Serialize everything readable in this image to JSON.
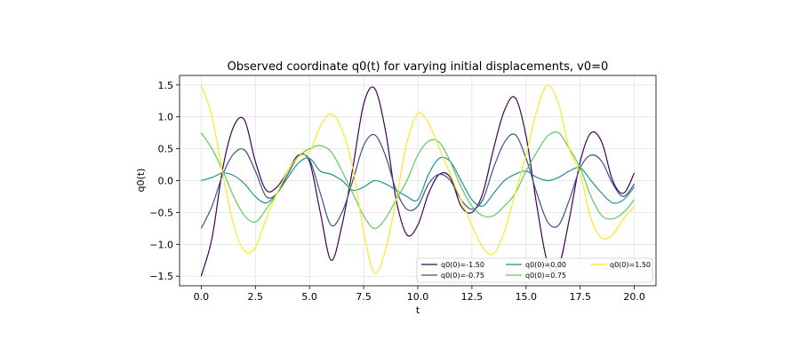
{
  "chart_data": {
    "type": "line",
    "title": "Observed coordinate q0(t) for varying initial displacements, v0=0",
    "xlabel": "t",
    "ylabel": "q0(t)",
    "xlim": [
      -1.0,
      21.0
    ],
    "ylim": [
      -1.65,
      1.65
    ],
    "x_ticks": [
      0.0,
      2.5,
      5.0,
      7.5,
      10.0,
      12.5,
      15.0,
      17.5,
      20.0
    ],
    "x_tick_labels": [
      "0.0",
      "2.5",
      "5.0",
      "7.5",
      "10.0",
      "12.5",
      "15.0",
      "17.5",
      "20.0"
    ],
    "y_ticks": [
      -1.5,
      -1.0,
      -0.5,
      0.0,
      0.5,
      1.0,
      1.5
    ],
    "y_tick_labels": [
      "−1.5",
      "−1.0",
      "−0.5",
      "0.0",
      "0.5",
      "1.0",
      "1.5"
    ],
    "grid": true,
    "legend_position": "lower-right",
    "legend_columns": 3,
    "series": [
      {
        "name": "q0(0)=-1.50",
        "color": "#440154",
        "initial": -1.5
      },
      {
        "name": "q0(0)=-0.75",
        "color": "#3b528b",
        "initial": -0.75
      },
      {
        "name": "q0(0)=0.00",
        "color": "#21918c",
        "initial": 0.0
      },
      {
        "name": "q0(0)=0.75",
        "color": "#5ec962",
        "initial": 0.75
      },
      {
        "name": "q0(0)=1.50",
        "color": "#fde725",
        "initial": 1.5
      }
    ],
    "x": [
      0,
      0.5,
      1,
      1.5,
      2,
      2.5,
      3,
      3.5,
      4,
      4.5,
      5,
      5.5,
      6,
      6.5,
      7,
      7.5,
      8,
      8.5,
      9,
      9.5,
      10,
      10.5,
      11,
      11.5,
      12,
      12.5,
      13,
      13.5,
      14,
      14.5,
      15,
      15.5,
      16,
      16.5,
      17,
      17.5,
      18,
      18.5,
      19,
      19.5,
      20
    ],
    "values": [
      [
        -1.5,
        -0.9,
        0.2,
        0.85,
        0.95,
        0.3,
        -0.15,
        -0.1,
        0.15,
        0.4,
        0.3,
        -0.5,
        -1.25,
        -0.7,
        0.2,
        1.2,
        1.45,
        0.8,
        -0.3,
        -0.85,
        -0.7,
        -0.2,
        0.1,
        0.05,
        -0.4,
        -0.5,
        -0.2,
        0.5,
        1.1,
        1.3,
        0.7,
        -0.4,
        -1.3,
        -1.35,
        -0.6,
        0.3,
        0.75,
        0.6,
        0.0,
        -0.2,
        0.12
      ],
      [
        -0.75,
        -0.4,
        0.1,
        0.42,
        0.48,
        0.15,
        -0.25,
        -0.2,
        0.1,
        0.38,
        0.33,
        -0.2,
        -0.7,
        -0.5,
        0.0,
        0.55,
        0.72,
        0.4,
        -0.15,
        -0.45,
        -0.4,
        -0.05,
        0.1,
        0.0,
        -0.3,
        -0.45,
        -0.3,
        0.2,
        0.6,
        0.72,
        0.35,
        -0.2,
        -0.65,
        -0.7,
        -0.3,
        0.2,
        0.4,
        0.3,
        -0.05,
        -0.25,
        -0.05
      ],
      [
        0.0,
        0.05,
        0.12,
        0.08,
        -0.05,
        -0.25,
        -0.35,
        -0.2,
        0.05,
        0.28,
        0.35,
        0.15,
        0.1,
        0.0,
        -0.15,
        -0.1,
        0.0,
        -0.05,
        -0.15,
        -0.25,
        -0.3,
        0.1,
        0.35,
        0.3,
        0.0,
        -0.3,
        -0.4,
        -0.2,
        0.0,
        0.1,
        0.15,
        0.05,
        0.0,
        0.05,
        0.15,
        0.2,
        0.0,
        -0.2,
        -0.35,
        -0.3,
        -0.1
      ],
      [
        0.75,
        0.5,
        0.15,
        -0.25,
        -0.55,
        -0.65,
        -0.45,
        -0.2,
        0.15,
        0.38,
        0.5,
        0.55,
        0.45,
        0.15,
        -0.2,
        -0.55,
        -0.75,
        -0.6,
        -0.3,
        0.0,
        0.4,
        0.62,
        0.6,
        0.3,
        -0.1,
        -0.4,
        -0.55,
        -0.55,
        -0.4,
        -0.2,
        0.15,
        0.45,
        0.7,
        0.75,
        0.5,
        0.2,
        -0.25,
        -0.55,
        -0.6,
        -0.5,
        -0.3
      ],
      [
        1.5,
        1.0,
        0.1,
        -0.7,
        -1.1,
        -1.05,
        -0.6,
        -0.2,
        0.15,
        0.38,
        0.45,
        0.85,
        1.05,
        0.8,
        0.2,
        -0.8,
        -1.45,
        -1.1,
        -0.3,
        0.6,
        1.05,
        0.9,
        0.5,
        0.1,
        -0.3,
        -0.7,
        -1.05,
        -1.15,
        -0.8,
        -0.2,
        0.4,
        1.1,
        1.5,
        1.2,
        0.5,
        0.1,
        -0.6,
        -0.9,
        -0.85,
        -0.6,
        -0.4
      ]
    ]
  }
}
